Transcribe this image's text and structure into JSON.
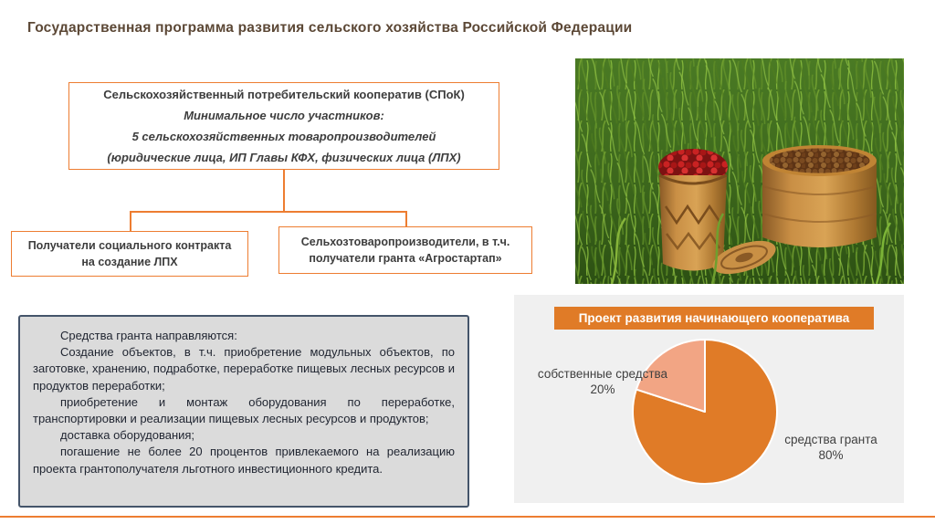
{
  "page": {
    "title": "Государственная программа развития сельского хозяйства Российской Федерации"
  },
  "flowchart": {
    "root": {
      "line1": "Сельскохозяйственный потребительский кооператив (СПоК)",
      "line2": "Минимальное число участников:",
      "line3": "5 сельскохозяйственных товаропроизводителей",
      "line4": "(юридические лица, ИП Главы КФХ, физических лица (ЛПХ)"
    },
    "children": [
      {
        "label": "Получатели социального контракта на создание ЛПХ"
      },
      {
        "label": "Сельхозтоваропроизводители, в т.ч. получатели гранта «Агростартап»"
      }
    ]
  },
  "grant_info": {
    "lines": [
      "Средства гранта направляются:",
      "Создание объектов, в т.ч. приобретение модульных объектов, по заготовке, хранению, подработке, переработке пищевых лесных ресурсов и продуктов переработки;",
      "приобретение и монтаж оборудования по переработке, транспортировки и реализации пищевых лесных ресурсов и продуктов;",
      "доставка оборудования;",
      "погашение не более 20 процентов привлекаемого на реализацию проекта грантополучателя льготного инвестиционного кредита."
    ]
  },
  "chart_data": {
    "type": "pie",
    "title": "Проект развития начинающего кооператива",
    "start_angle_deg": -90,
    "direction": "clockwise",
    "slices": [
      {
        "label": "средства гранта",
        "value": 80,
        "pct": "80%",
        "color": "#E07B27"
      },
      {
        "label": "собственные средства",
        "value": 20,
        "pct": "20%",
        "color": "#F2A584"
      }
    ],
    "legend_position": "data-labels"
  },
  "colors": {
    "accent_orange": "#ED7D31",
    "chart_orange": "#E07B27",
    "chart_salmon": "#F2A584",
    "title_text": "#5C4836",
    "info_box_fill": "#DBDBDB",
    "info_box_border": "#44546A",
    "chart_panel_fill": "#F0F0F0"
  }
}
